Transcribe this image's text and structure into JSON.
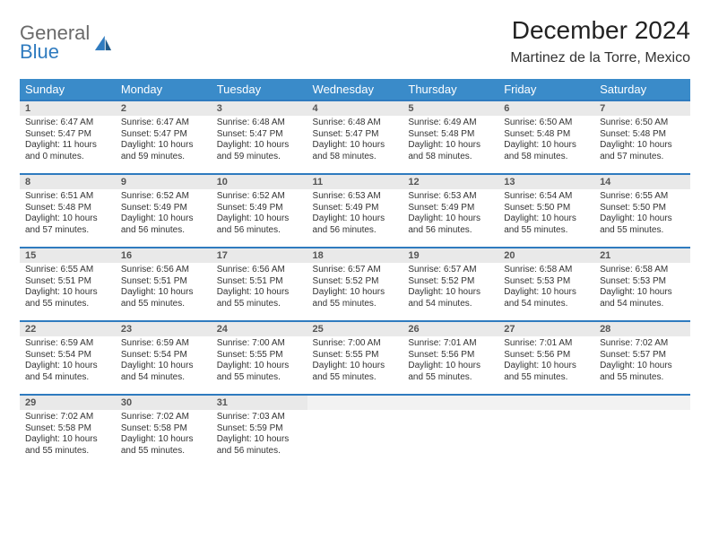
{
  "logo": {
    "word1": "General",
    "word2": "Blue"
  },
  "title": "December 2024",
  "subtitle": "Martinez de la Torre, Mexico",
  "colors": {
    "header_bg": "#3a8bc9",
    "row_border": "#2f7bbf",
    "daynum_bg": "#e9e9e9",
    "logo_gray": "#6a6a6a",
    "logo_blue": "#2f7bbf"
  },
  "weekdays": [
    "Sunday",
    "Monday",
    "Tuesday",
    "Wednesday",
    "Thursday",
    "Friday",
    "Saturday"
  ],
  "weeks": [
    [
      {
        "n": "1",
        "sr": "6:47 AM",
        "ss": "5:47 PM",
        "dl": "11 hours and 0 minutes."
      },
      {
        "n": "2",
        "sr": "6:47 AM",
        "ss": "5:47 PM",
        "dl": "10 hours and 59 minutes."
      },
      {
        "n": "3",
        "sr": "6:48 AM",
        "ss": "5:47 PM",
        "dl": "10 hours and 59 minutes."
      },
      {
        "n": "4",
        "sr": "6:48 AM",
        "ss": "5:47 PM",
        "dl": "10 hours and 58 minutes."
      },
      {
        "n": "5",
        "sr": "6:49 AM",
        "ss": "5:48 PM",
        "dl": "10 hours and 58 minutes."
      },
      {
        "n": "6",
        "sr": "6:50 AM",
        "ss": "5:48 PM",
        "dl": "10 hours and 58 minutes."
      },
      {
        "n": "7",
        "sr": "6:50 AM",
        "ss": "5:48 PM",
        "dl": "10 hours and 57 minutes."
      }
    ],
    [
      {
        "n": "8",
        "sr": "6:51 AM",
        "ss": "5:48 PM",
        "dl": "10 hours and 57 minutes."
      },
      {
        "n": "9",
        "sr": "6:52 AM",
        "ss": "5:49 PM",
        "dl": "10 hours and 56 minutes."
      },
      {
        "n": "10",
        "sr": "6:52 AM",
        "ss": "5:49 PM",
        "dl": "10 hours and 56 minutes."
      },
      {
        "n": "11",
        "sr": "6:53 AM",
        "ss": "5:49 PM",
        "dl": "10 hours and 56 minutes."
      },
      {
        "n": "12",
        "sr": "6:53 AM",
        "ss": "5:49 PM",
        "dl": "10 hours and 56 minutes."
      },
      {
        "n": "13",
        "sr": "6:54 AM",
        "ss": "5:50 PM",
        "dl": "10 hours and 55 minutes."
      },
      {
        "n": "14",
        "sr": "6:55 AM",
        "ss": "5:50 PM",
        "dl": "10 hours and 55 minutes."
      }
    ],
    [
      {
        "n": "15",
        "sr": "6:55 AM",
        "ss": "5:51 PM",
        "dl": "10 hours and 55 minutes."
      },
      {
        "n": "16",
        "sr": "6:56 AM",
        "ss": "5:51 PM",
        "dl": "10 hours and 55 minutes."
      },
      {
        "n": "17",
        "sr": "6:56 AM",
        "ss": "5:51 PM",
        "dl": "10 hours and 55 minutes."
      },
      {
        "n": "18",
        "sr": "6:57 AM",
        "ss": "5:52 PM",
        "dl": "10 hours and 55 minutes."
      },
      {
        "n": "19",
        "sr": "6:57 AM",
        "ss": "5:52 PM",
        "dl": "10 hours and 54 minutes."
      },
      {
        "n": "20",
        "sr": "6:58 AM",
        "ss": "5:53 PM",
        "dl": "10 hours and 54 minutes."
      },
      {
        "n": "21",
        "sr": "6:58 AM",
        "ss": "5:53 PM",
        "dl": "10 hours and 54 minutes."
      }
    ],
    [
      {
        "n": "22",
        "sr": "6:59 AM",
        "ss": "5:54 PM",
        "dl": "10 hours and 54 minutes."
      },
      {
        "n": "23",
        "sr": "6:59 AM",
        "ss": "5:54 PM",
        "dl": "10 hours and 54 minutes."
      },
      {
        "n": "24",
        "sr": "7:00 AM",
        "ss": "5:55 PM",
        "dl": "10 hours and 55 minutes."
      },
      {
        "n": "25",
        "sr": "7:00 AM",
        "ss": "5:55 PM",
        "dl": "10 hours and 55 minutes."
      },
      {
        "n": "26",
        "sr": "7:01 AM",
        "ss": "5:56 PM",
        "dl": "10 hours and 55 minutes."
      },
      {
        "n": "27",
        "sr": "7:01 AM",
        "ss": "5:56 PM",
        "dl": "10 hours and 55 minutes."
      },
      {
        "n": "28",
        "sr": "7:02 AM",
        "ss": "5:57 PM",
        "dl": "10 hours and 55 minutes."
      }
    ],
    [
      {
        "n": "29",
        "sr": "7:02 AM",
        "ss": "5:58 PM",
        "dl": "10 hours and 55 minutes."
      },
      {
        "n": "30",
        "sr": "7:02 AM",
        "ss": "5:58 PM",
        "dl": "10 hours and 55 minutes."
      },
      {
        "n": "31",
        "sr": "7:03 AM",
        "ss": "5:59 PM",
        "dl": "10 hours and 56 minutes."
      },
      null,
      null,
      null,
      null
    ]
  ],
  "labels": {
    "sunrise": "Sunrise:",
    "sunset": "Sunset:",
    "daylight": "Daylight:"
  }
}
